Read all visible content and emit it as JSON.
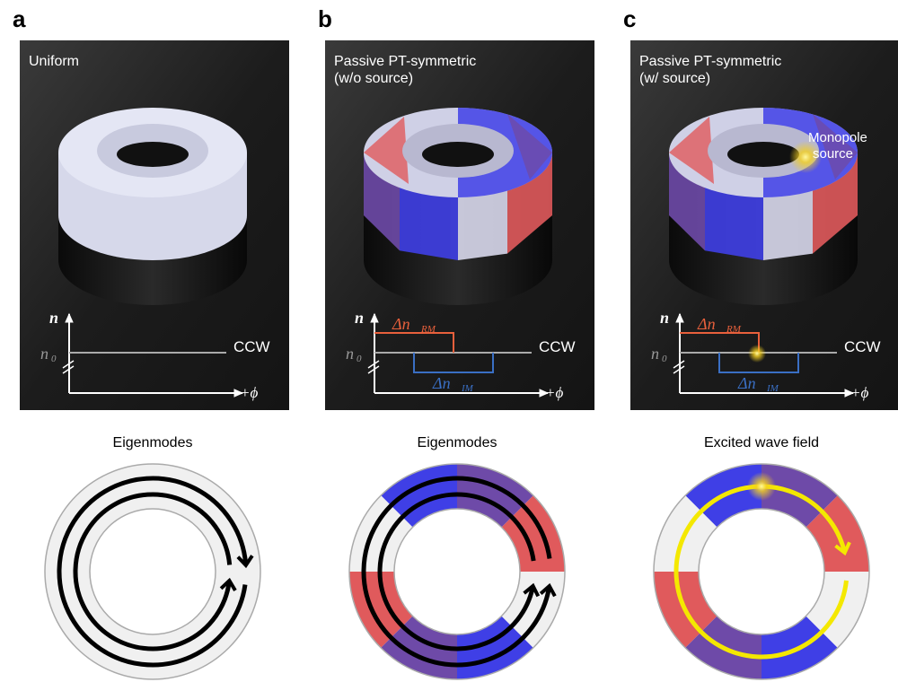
{
  "panels": [
    {
      "letter": "a",
      "title": "Uniform",
      "title2": "",
      "bottom_title": "Eigenmodes"
    },
    {
      "letter": "b",
      "title": "Passive PT-symmetric",
      "title2": "(w/o source)",
      "bottom_title": "Eigenmodes"
    },
    {
      "letter": "c",
      "title": "Passive PT-symmetric",
      "title2": "(w/ source)",
      "bottom_title": "Excited wave field",
      "source_label": "Monopole",
      "source_label2": "source"
    }
  ],
  "graph": {
    "y_label": "n",
    "n0_label": "n",
    "n0_sub": "0",
    "x_label": "CCW",
    "x_label2": "+ϕ",
    "rm_label": "Δn",
    "rm_sub": "RM",
    "im_label": "Δn",
    "im_sub": "IM"
  },
  "colors": {
    "red": "#e05a5c",
    "blue": "#3f3fe6",
    "purple": "#6e4aa8",
    "white": "#f0f0f0",
    "yellow": "#f4e800",
    "rm_line": "#e8603c",
    "im_line": "#3a6fc4",
    "panel_bg": "#1e1e1e"
  },
  "ring_segments_b": [
    "red",
    "purple",
    "blue",
    "white",
    "red",
    "purple",
    "blue",
    "white"
  ]
}
